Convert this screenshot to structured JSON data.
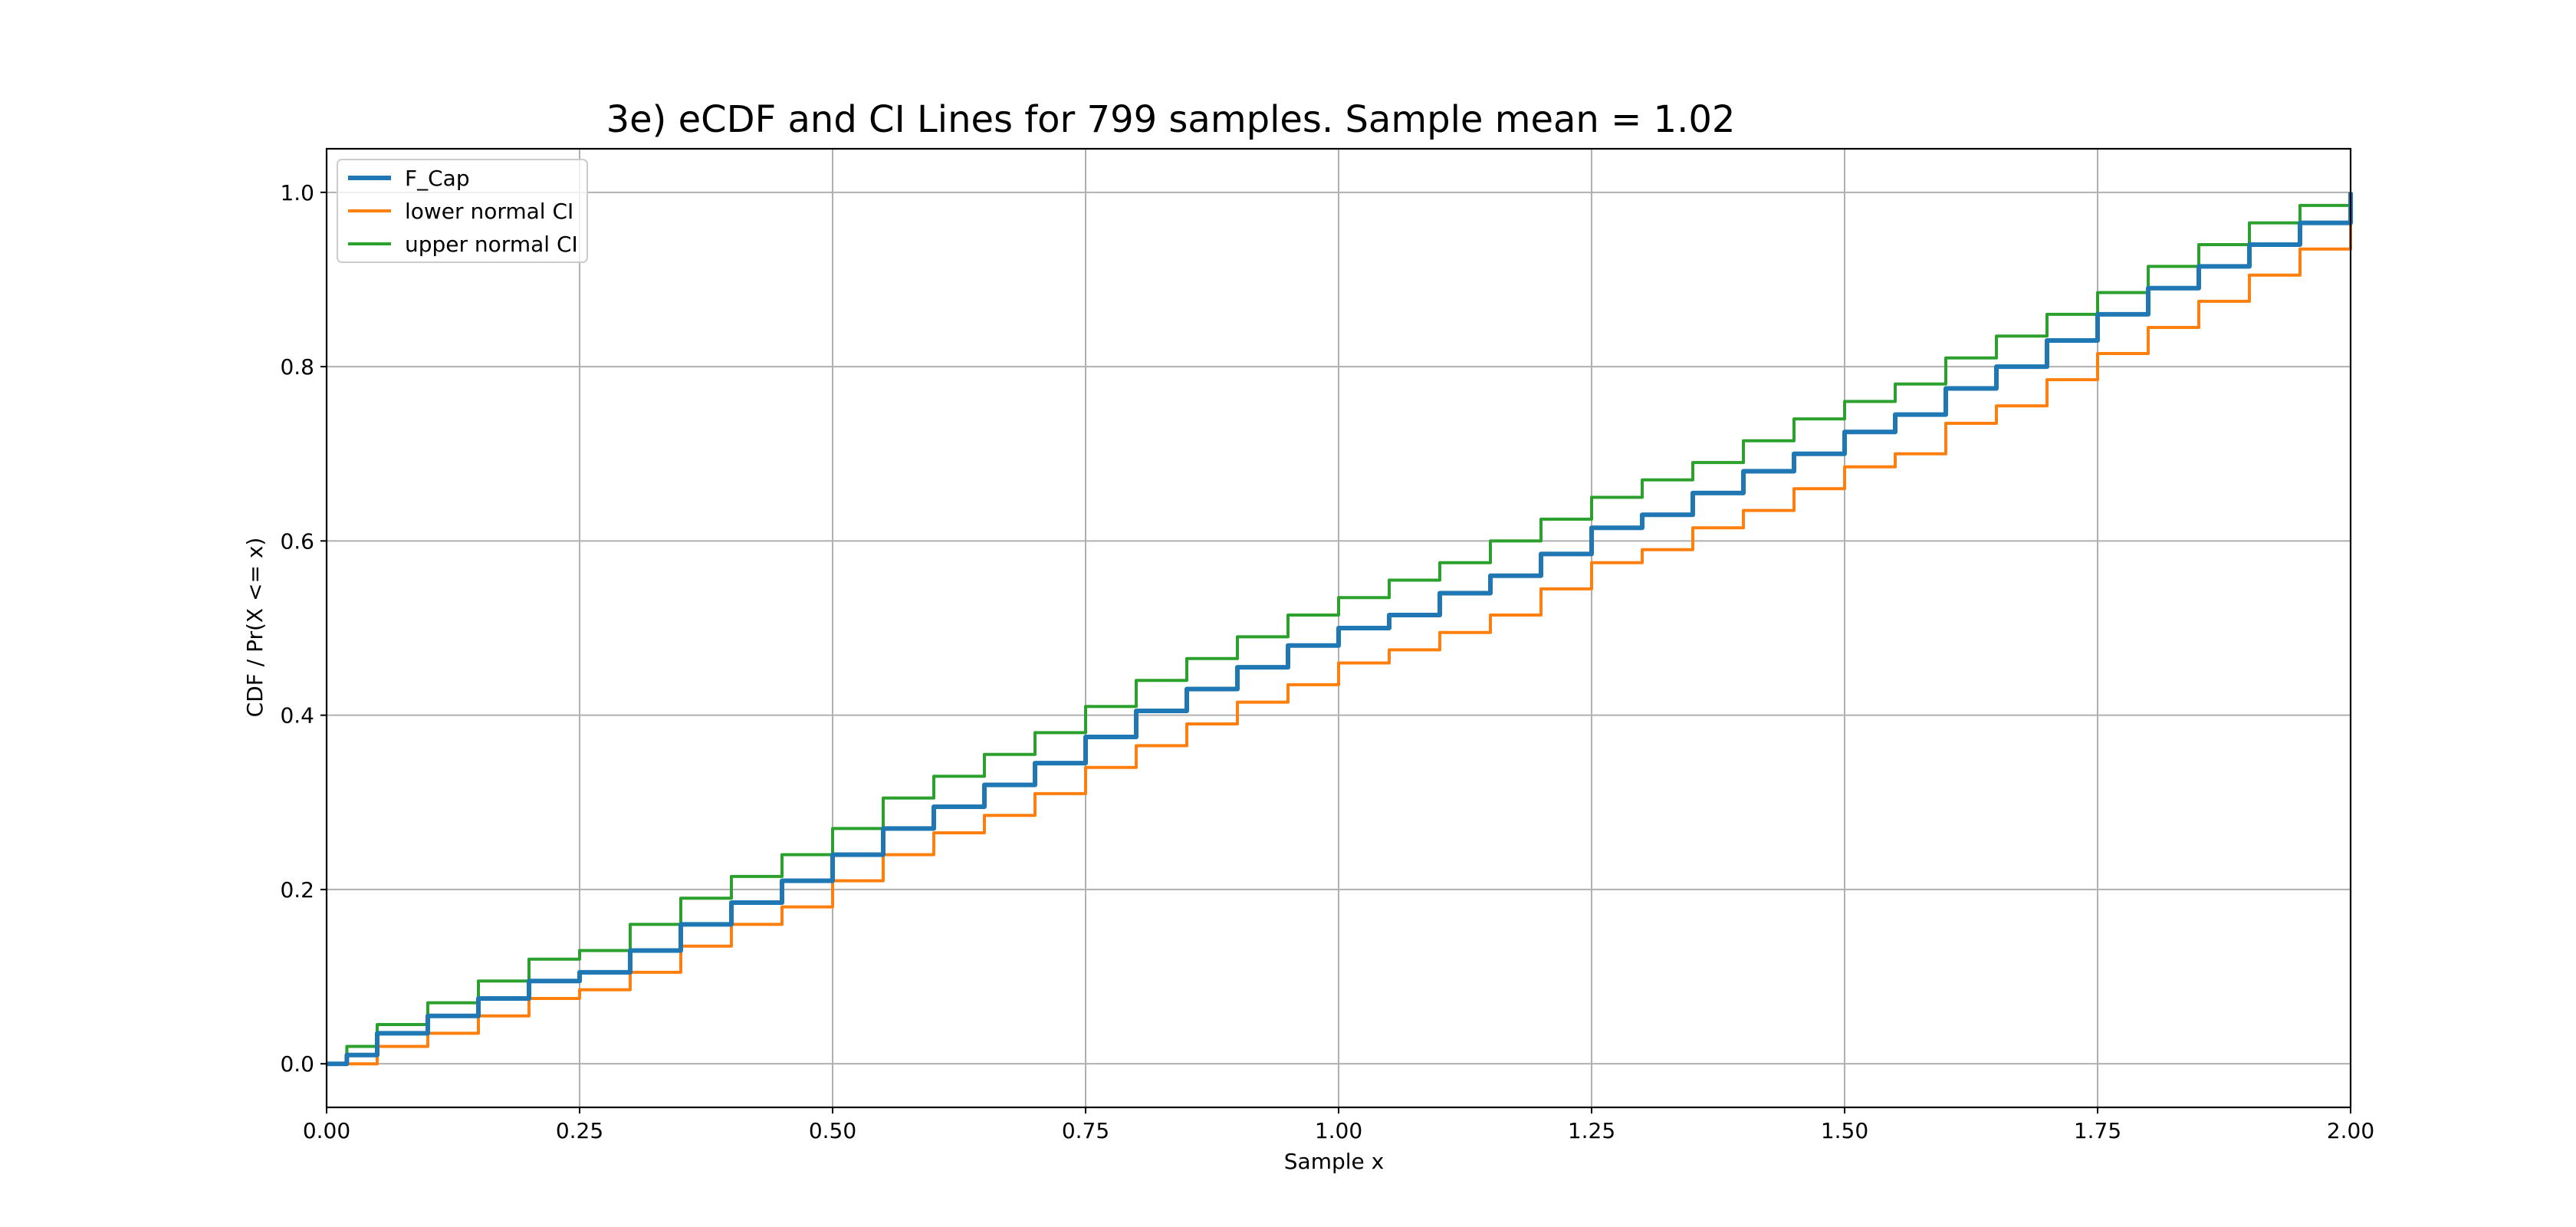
{
  "chart_data": {
    "type": "line",
    "title": "3e) eCDF and CI Lines for 799 samples. Sample mean = 1.02",
    "xlabel": "Sample x",
    "ylabel": "CDF / Pr(X <= x)",
    "xlim": [
      0.0,
      2.0
    ],
    "ylim": [
      -0.05,
      1.05
    ],
    "xticks": [
      "0.00",
      "0.25",
      "0.50",
      "0.75",
      "1.00",
      "1.25",
      "1.50",
      "1.75",
      "2.00"
    ],
    "yticks": [
      "0.0",
      "0.2",
      "0.4",
      "0.6",
      "0.8",
      "1.0"
    ],
    "grid": true,
    "legend_position": "upper-left",
    "series": [
      {
        "name": "F_Cap",
        "color": "#1f77b4",
        "x": [
          0.0,
          0.02,
          0.05,
          0.1,
          0.15,
          0.2,
          0.25,
          0.3,
          0.35,
          0.4,
          0.45,
          0.5,
          0.55,
          0.6,
          0.65,
          0.7,
          0.75,
          0.8,
          0.85,
          0.9,
          0.95,
          1.0,
          1.05,
          1.1,
          1.15,
          1.2,
          1.25,
          1.3,
          1.35,
          1.4,
          1.45,
          1.5,
          1.55,
          1.6,
          1.65,
          1.7,
          1.75,
          1.8,
          1.85,
          1.9,
          1.95,
          2.0
        ],
        "y": [
          0.0,
          0.01,
          0.035,
          0.055,
          0.075,
          0.095,
          0.105,
          0.13,
          0.16,
          0.185,
          0.21,
          0.24,
          0.27,
          0.295,
          0.32,
          0.345,
          0.375,
          0.405,
          0.43,
          0.455,
          0.48,
          0.5,
          0.515,
          0.54,
          0.56,
          0.585,
          0.615,
          0.63,
          0.655,
          0.68,
          0.7,
          0.725,
          0.745,
          0.775,
          0.8,
          0.83,
          0.86,
          0.89,
          0.915,
          0.94,
          0.965,
          1.0
        ]
      },
      {
        "name": "lower normal CI",
        "color": "#ff7f0e",
        "x": [
          0.0,
          0.02,
          0.05,
          0.1,
          0.15,
          0.2,
          0.25,
          0.3,
          0.35,
          0.4,
          0.45,
          0.5,
          0.55,
          0.6,
          0.65,
          0.7,
          0.75,
          0.8,
          0.85,
          0.9,
          0.95,
          1.0,
          1.05,
          1.1,
          1.15,
          1.2,
          1.25,
          1.3,
          1.35,
          1.4,
          1.45,
          1.5,
          1.55,
          1.6,
          1.65,
          1.7,
          1.75,
          1.8,
          1.85,
          1.9,
          1.95,
          2.0
        ],
        "y": [
          0.0,
          0.0,
          0.02,
          0.035,
          0.055,
          0.075,
          0.085,
          0.105,
          0.135,
          0.16,
          0.18,
          0.21,
          0.24,
          0.265,
          0.285,
          0.31,
          0.34,
          0.365,
          0.39,
          0.415,
          0.435,
          0.46,
          0.475,
          0.495,
          0.515,
          0.545,
          0.575,
          0.59,
          0.615,
          0.635,
          0.66,
          0.685,
          0.7,
          0.735,
          0.755,
          0.785,
          0.815,
          0.845,
          0.875,
          0.905,
          0.935,
          0.99
        ]
      },
      {
        "name": "upper normal CI",
        "color": "#2ca02c",
        "x": [
          0.0,
          0.02,
          0.05,
          0.1,
          0.15,
          0.2,
          0.25,
          0.3,
          0.35,
          0.4,
          0.45,
          0.5,
          0.55,
          0.6,
          0.65,
          0.7,
          0.75,
          0.8,
          0.85,
          0.9,
          0.95,
          1.0,
          1.05,
          1.1,
          1.15,
          1.2,
          1.25,
          1.3,
          1.35,
          1.4,
          1.45,
          1.5,
          1.55,
          1.6,
          1.65,
          1.7,
          1.75,
          1.8,
          1.85,
          1.9,
          1.95,
          2.0
        ],
        "y": [
          0.0,
          0.02,
          0.045,
          0.07,
          0.095,
          0.12,
          0.13,
          0.16,
          0.19,
          0.215,
          0.24,
          0.27,
          0.305,
          0.33,
          0.355,
          0.38,
          0.41,
          0.44,
          0.465,
          0.49,
          0.515,
          0.535,
          0.555,
          0.575,
          0.6,
          0.625,
          0.65,
          0.67,
          0.69,
          0.715,
          0.74,
          0.76,
          0.78,
          0.81,
          0.835,
          0.86,
          0.885,
          0.915,
          0.94,
          0.965,
          0.985,
          1.0
        ]
      }
    ]
  }
}
